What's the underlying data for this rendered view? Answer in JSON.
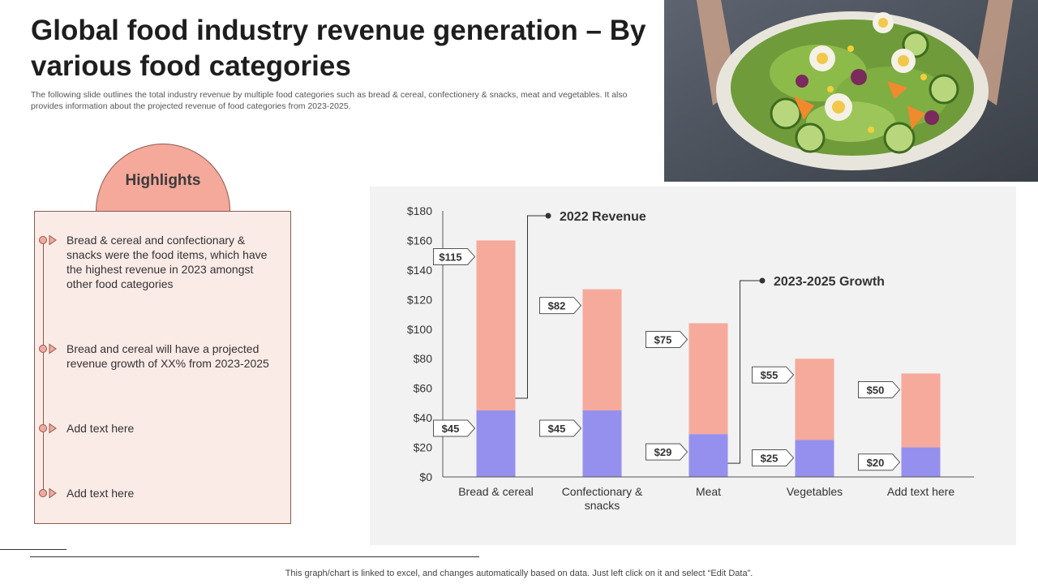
{
  "title": "Global food industry revenue generation – By various food categories",
  "subtitle": "The following slide outlines the total industry revenue by multiple food categories such as bread & cereal, confectionery & snacks, meat and vegetables. It also provides information about the projected revenue of food categories from 2023-2025.",
  "highlights": {
    "heading": "Highlights",
    "items": [
      "Bread & cereal and confectionary & snacks were the food items, which have the highest revenue in 2023 amongst other food categories",
      "Bread and cereal will have a projected revenue growth of XX% from 2023-2025",
      "Add text here",
      "Add text here"
    ]
  },
  "footnote": "This graph/chart is linked to excel,  and changes automatically based on data. Just left click on it and select “Edit Data”.",
  "colors": {
    "revenue_2022": "#9590ee",
    "growth_2023_2025": "#f5aa9c",
    "accent": "#f4a99b",
    "panel": "#f2f2f2"
  },
  "chart_data": {
    "type": "bar",
    "stacked": true,
    "categories": [
      "Bread  & cereal",
      "Confectionary &\nsnacks",
      "Meat",
      "Vegetables",
      "Add text here"
    ],
    "series": [
      {
        "name": "2022 Revenue",
        "values": [
          45,
          45,
          29,
          25,
          20
        ],
        "labels": [
          "$45",
          "$45",
          "$29",
          "$25",
          "$20"
        ]
      },
      {
        "name": "2023-2025 Growth",
        "values": [
          115,
          82,
          75,
          55,
          50
        ],
        "labels": [
          "$115",
          "$82",
          "$75",
          "$55",
          "$50"
        ]
      }
    ],
    "ylim": [
      0,
      180
    ],
    "yticks": [
      0,
      20,
      40,
      60,
      80,
      100,
      120,
      140,
      160,
      180
    ],
    "ytick_labels": [
      "$0",
      "$20",
      "$40",
      "$60",
      "$80",
      "$100",
      "$120",
      "$140",
      "$160",
      "$180"
    ],
    "annotations": [
      {
        "text": "2022 Revenue",
        "series": 0,
        "category": 0
      },
      {
        "text": "2023-2025 Growth",
        "series": 1,
        "category": 2
      }
    ],
    "xlabel": "",
    "ylabel": "",
    "grid": false
  }
}
